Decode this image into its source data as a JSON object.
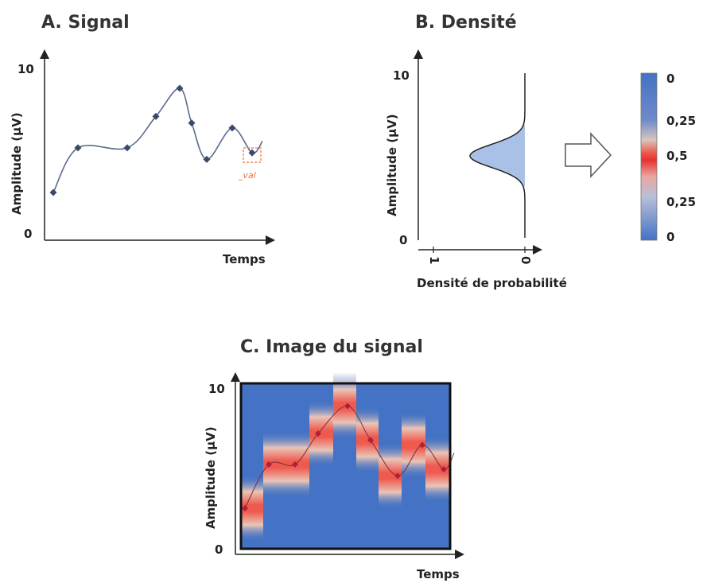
{
  "panel_a": {
    "title": "A. Signal",
    "ylabel": "Amplitude (µV)",
    "xlabel": "Temps",
    "y_ticks": [
      "10",
      "0"
    ],
    "annotation": "_val"
  },
  "panel_b": {
    "title": "B. Densité",
    "ylabel": "Amplitude (µV)",
    "xlabel": "Densité de probabilité",
    "y_ticks": [
      "10",
      "0"
    ],
    "x_ticks": [
      "1",
      "0"
    ],
    "colorbar_labels": [
      "0",
      "0,25",
      "0,5",
      "0,25",
      "0"
    ],
    "arrow_icon": "right-arrow-icon"
  },
  "panel_c": {
    "title": "C. Image du signal",
    "ylabel": "Amplitude (µV)",
    "xlabel": "Temps",
    "y_ticks": [
      "10",
      "0"
    ]
  },
  "colors": {
    "background_blue": "#4472c4",
    "peak_red": "#e8322f",
    "marker": "#3b4a6b",
    "annotation": "#e8743b"
  },
  "chart_data": [
    {
      "panel": "A",
      "type": "line",
      "title": "A. Signal",
      "xlabel": "Temps",
      "ylabel": "Amplitude (µV)",
      "ylim": [
        0,
        10
      ],
      "x": [
        1,
        2,
        3,
        4,
        5,
        6,
        7,
        8,
        9
      ],
      "y": [
        2.5,
        5.2,
        5.2,
        7.1,
        8.8,
        6.7,
        4.5,
        6.4,
        4.9
      ]
    },
    {
      "panel": "B",
      "type": "area",
      "title": "B. Densité",
      "xlabel": "Densité de probabilité",
      "ylabel": "Amplitude (µV)",
      "ylim": [
        0,
        10
      ],
      "xlim": [
        1,
        0
      ],
      "distribution": {
        "shape": "gaussian",
        "mean": 5.0,
        "sd": 0.7,
        "peak_density": 0.6
      }
    },
    {
      "panel": "C",
      "type": "heatmap",
      "title": "C. Image du signal",
      "xlabel": "Temps",
      "ylabel": "Amplitude (µV)",
      "ylim": [
        0,
        10
      ],
      "x": [
        1,
        2,
        3,
        4,
        5,
        6,
        7,
        8,
        9
      ],
      "y": [
        2.5,
        5.2,
        5.2,
        7.1,
        8.8,
        6.7,
        4.5,
        6.4,
        4.9
      ]
    }
  ]
}
